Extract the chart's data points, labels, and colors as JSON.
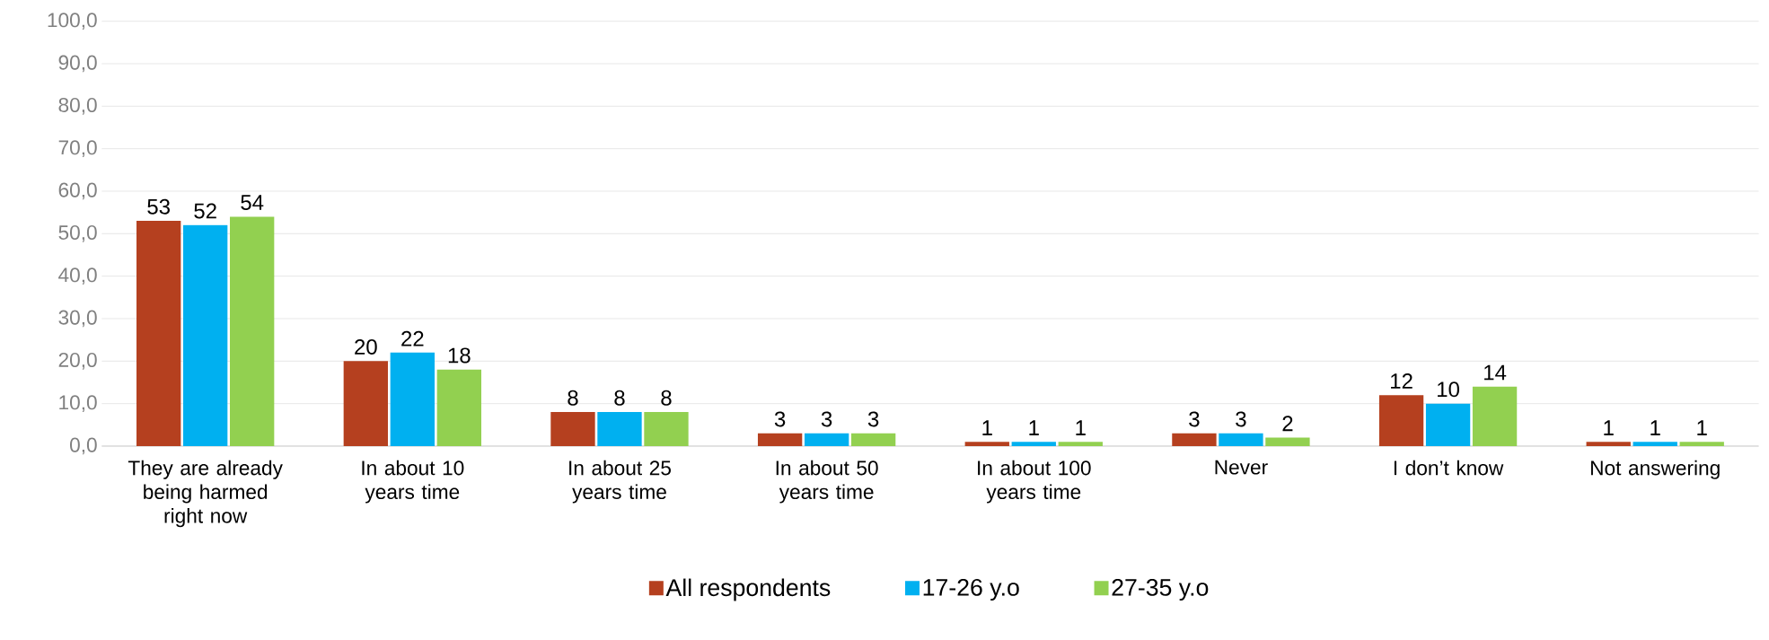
{
  "chart_data": {
    "type": "bar",
    "categories": [
      "They are already being harmed right now",
      "In about 10 years time",
      "In about 25 years time",
      "In about 50 years time",
      "In about 100 years time",
      "Never",
      "I don’t know",
      "Not answering"
    ],
    "series": [
      {
        "name": "All respondents",
        "color": "#b5401f",
        "values": [
          53,
          20,
          8,
          3,
          1,
          3,
          12,
          1
        ]
      },
      {
        "name": "17-26 y.o",
        "color": "#00b0f0",
        "values": [
          52,
          22,
          8,
          3,
          1,
          3,
          10,
          1
        ]
      },
      {
        "name": "27-35 y.o",
        "color": "#92d050",
        "values": [
          54,
          18,
          8,
          3,
          1,
          2,
          14,
          1
        ]
      }
    ],
    "ylim": [
      0,
      100
    ],
    "yticks": [
      {
        "value": 0,
        "label": "0,0"
      },
      {
        "value": 10,
        "label": "10,0"
      },
      {
        "value": 20,
        "label": "20,0"
      },
      {
        "value": 30,
        "label": "30,0"
      },
      {
        "value": 40,
        "label": "40,0"
      },
      {
        "value": 50,
        "label": "50,0"
      },
      {
        "value": 60,
        "label": "60,0"
      },
      {
        "value": 70,
        "label": "70,0"
      },
      {
        "value": 80,
        "label": "80,0"
      },
      {
        "value": 90,
        "label": "90,0"
      },
      {
        "value": 100,
        "label": "100,0"
      }
    ],
    "grid": "y",
    "legend": "bottom",
    "data_labels": true
  }
}
